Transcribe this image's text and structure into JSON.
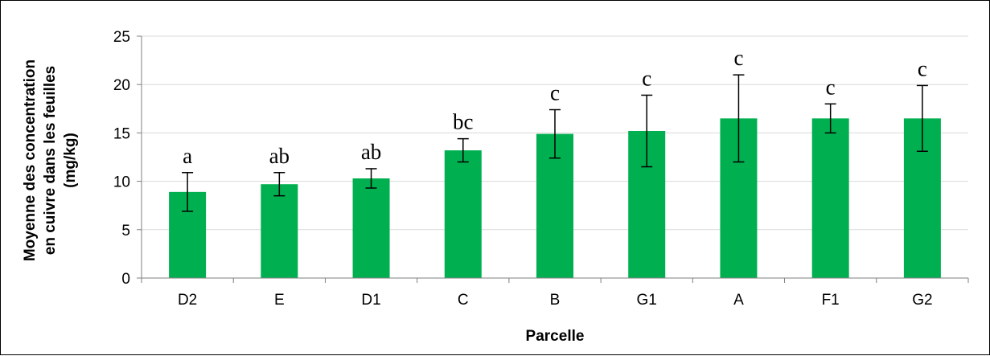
{
  "chart_data": {
    "type": "bar",
    "xlabel": "Parcelle",
    "ylabel": [
      "Moyenne des concentration",
      "en cuivre dans les feuilles",
      "(mg/kg)"
    ],
    "ylim": [
      0,
      25
    ],
    "yticks": [
      0,
      5,
      10,
      15,
      20,
      25
    ],
    "grid": true,
    "bar_color": "#00B050",
    "categories": [
      "D2",
      "E",
      "D1",
      "C",
      "B",
      "G1",
      "A",
      "F1",
      "G2"
    ],
    "values": [
      8.9,
      9.7,
      10.3,
      13.2,
      14.9,
      15.2,
      16.5,
      16.5,
      16.5
    ],
    "error": [
      2.0,
      1.2,
      1.0,
      1.2,
      2.5,
      3.7,
      4.5,
      1.5,
      3.4
    ],
    "significance_letters": [
      "a",
      "ab",
      "ab",
      "bc",
      "c",
      "c",
      "c",
      "c",
      "c"
    ]
  }
}
